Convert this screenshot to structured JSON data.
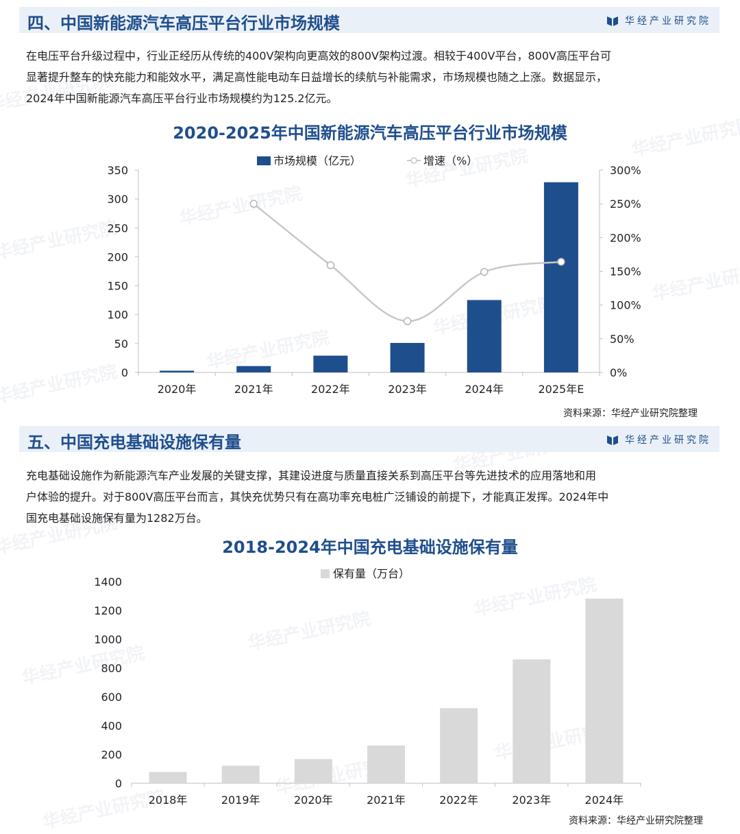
{
  "brand": {
    "name": "华经产业研究院"
  },
  "watermark": "华经产业研究院",
  "section4": {
    "title": "四、中国新能源汽车高压平台行业市场规模",
    "paragraph": [
      "在电压平台升级过程中，行业正经历从传统的400V架构向更高效的800V架构过渡。相较于400V平台，800V高压平台可",
      "显著提升整车的快充能力和能效水平，满足高性能电动车日益增长的续航与补能需求，市场规模也随之上涨。数据显示，",
      "2024年中国新能源汽车高压平台行业市场规模约为125.2亿元。"
    ]
  },
  "section5": {
    "title": "五、中国充电基础设施保有量",
    "paragraph": [
      "充电基础设施作为新能源汽车产业发展的关键支撑，其建设进度与质量直接关系到高压平台等先进技术的应用落地和用",
      "户体验的提升。对于800V高压平台而言，其快充优势只有在高功率充电桩广泛铺设的前提下，才能真正发挥。2024年中",
      "国充电基础设施保有量为1282万台。"
    ]
  },
  "chart_data": [
    {
      "type": "bar",
      "title": "2020-2025年中国新能源汽车高压平台行业市场规模",
      "categories": [
        "2020年",
        "2021年",
        "2022年",
        "2023年",
        "2024年",
        "2025年E"
      ],
      "series": [
        {
          "name": "市场规模（亿元）",
          "type": "bar",
          "axis": "left",
          "color": "#1f4e8c",
          "values": [
            3,
            11,
            29,
            51,
            125.2,
            329
          ]
        },
        {
          "name": "增速（%）",
          "type": "line",
          "axis": "right",
          "color": "#c8c8c8",
          "values": [
            null,
            250,
            159,
            76,
            149,
            164
          ]
        }
      ],
      "ylim": [
        0,
        350
      ],
      "yticks": [
        0,
        50,
        100,
        150,
        200,
        250,
        300,
        350
      ],
      "y2lim": [
        0,
        300
      ],
      "y2ticks": [
        "0%",
        "50%",
        "100%",
        "150%",
        "200%",
        "250%",
        "300%"
      ],
      "legend": "top-center",
      "grid": false,
      "source": "资料来源：华经产业研究院整理"
    },
    {
      "type": "bar",
      "title": "2018-2024年中国充电基础设施保有量",
      "categories": [
        "2018年",
        "2019年",
        "2020年",
        "2021年",
        "2022年",
        "2023年",
        "2024年"
      ],
      "series": [
        {
          "name": "保有量（万台）",
          "color": "#d9d9d9",
          "values": [
            78,
            122,
            168,
            262,
            521,
            860,
            1282
          ]
        }
      ],
      "ylim": [
        0,
        1400
      ],
      "yticks": [
        0,
        200,
        400,
        600,
        800,
        1000,
        1200,
        1400
      ],
      "legend": "top-center",
      "grid": false,
      "source": "资料来源：华经产业研究院整理"
    }
  ]
}
